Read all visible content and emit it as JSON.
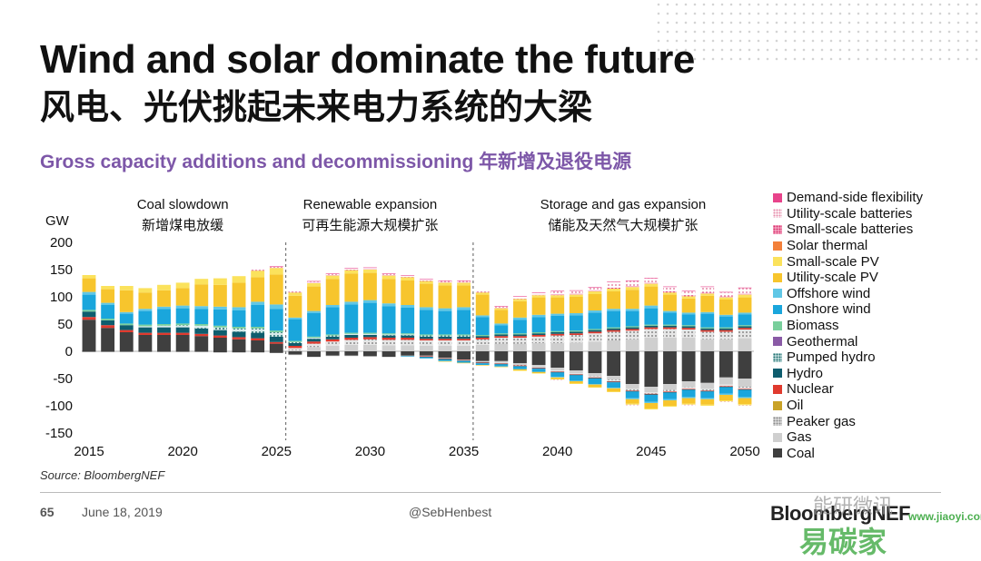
{
  "header": {
    "title_en": "Wind and solar dominate the future",
    "title_cn": "风电、光伏挑起未来电力系统的大梁",
    "subtitle": "Gross capacity additions and decommissioning 年新增及退役电源"
  },
  "footer": {
    "source": "Source: BloombergNEF",
    "page_number": "65",
    "date": "June 18, 2019",
    "handle": "@SebHenbest",
    "brand": "BloombergNEF",
    "watermark_cn": "能研微讯",
    "watermark_url": "www.jiaoyi.com",
    "watermark_logo": "易碳家"
  },
  "colors": {
    "Demand-side flexibility": "#e8438b",
    "Utility-scale batteries": "#f2b6c8",
    "Small-scale batteries": "#ee4f8c",
    "Solar thermal": "#f3803a",
    "Small-scale PV": "#fbe25c",
    "Utility-scale PV": "#f7c52d",
    "Offshore wind": "#60c7e6",
    "Onshore wind": "#1aa6dc",
    "Biomass": "#79cf9c",
    "Geothermal": "#8a5aa6",
    "Pumped hydro": "#1f6f6f",
    "Hydro": "#0e5d6e",
    "Nuclear": "#e03a2e",
    "Oil": "#c9a227",
    "Peaker gas": "#a8a8a8",
    "Gas": "#cfcfcf",
    "Coal": "#3f3f3f"
  },
  "chart_data": {
    "type": "bar",
    "stacked": true,
    "ylabel": "GW",
    "ylim": [
      -150,
      200
    ],
    "yticks": [
      200,
      150,
      100,
      50,
      0,
      -50,
      -100,
      -150
    ],
    "xticks": [
      2015,
      2020,
      2025,
      2030,
      2035,
      2040,
      2045,
      2050
    ],
    "categories": [
      2015,
      2016,
      2017,
      2018,
      2019,
      2020,
      2021,
      2022,
      2023,
      2024,
      2025,
      2026,
      2027,
      2028,
      2029,
      2030,
      2031,
      2032,
      2033,
      2034,
      2035,
      2036,
      2037,
      2038,
      2039,
      2040,
      2041,
      2042,
      2043,
      2044,
      2045,
      2046,
      2047,
      2048,
      2049,
      2050
    ],
    "phases": [
      {
        "title": "Coal slowdown",
        "title_cn": "新增煤电放缓",
        "x_center": 2020
      },
      {
        "title": "Renewable expansion",
        "title_cn": "可再生能源大规模扩张",
        "x_center": 2030
      },
      {
        "title": "Storage and gas expansion",
        "title_cn": "储能及天然气大规模扩张",
        "x_center": 2043.5
      }
    ],
    "dividers": [
      2025.5,
      2035.5
    ],
    "legend_order": [
      "Demand-side flexibility",
      "Utility-scale batteries",
      "Small-scale batteries",
      "Solar thermal",
      "Small-scale PV",
      "Utility-scale PV",
      "Offshore wind",
      "Onshore wind",
      "Biomass",
      "Geothermal",
      "Pumped hydro",
      "Hydro",
      "Nuclear",
      "Oil",
      "Peaker gas",
      "Gas",
      "Coal"
    ],
    "positive_series": [
      {
        "name": "Coal",
        "values": [
          58,
          43,
          35,
          30,
          30,
          30,
          28,
          25,
          22,
          20,
          14,
          0,
          0,
          0,
          0,
          0,
          0,
          0,
          0,
          0,
          0,
          0,
          0,
          0,
          0,
          0,
          0,
          0,
          0,
          0,
          0,
          0,
          0,
          0,
          0,
          0
        ]
      },
      {
        "name": "Gas",
        "values": [
          0,
          0,
          0,
          0,
          0,
          0,
          0,
          0,
          0,
          0,
          0,
          2,
          8,
          10,
          12,
          12,
          11,
          11,
          10,
          10,
          10,
          12,
          14,
          14,
          15,
          15,
          16,
          18,
          20,
          22,
          25,
          25,
          25,
          22,
          22,
          24
        ]
      },
      {
        "name": "Peaker gas",
        "values": [
          0,
          0,
          0,
          0,
          0,
          0,
          0,
          0,
          0,
          0,
          0,
          4,
          6,
          8,
          9,
          10,
          10,
          10,
          10,
          10,
          10,
          10,
          11,
          11,
          12,
          14,
          14,
          15,
          16,
          16,
          16,
          16,
          15,
          14,
          14,
          16
        ]
      },
      {
        "name": "Nuclear",
        "values": [
          5,
          5,
          4,
          4,
          4,
          4,
          4,
          4,
          4,
          4,
          3,
          4,
          4,
          4,
          4,
          4,
          4,
          4,
          3,
          3,
          3,
          3,
          3,
          3,
          3,
          3,
          3,
          3,
          3,
          3,
          3,
          3,
          3,
          3,
          3,
          3
        ]
      },
      {
        "name": "Hydro",
        "values": [
          10,
          9,
          9,
          10,
          10,
          10,
          10,
          10,
          10,
          10,
          10,
          5,
          5,
          5,
          5,
          4,
          4,
          4,
          4,
          4,
          4,
          3,
          3,
          3,
          3,
          3,
          3,
          3,
          3,
          3,
          3,
          3,
          3,
          3,
          3,
          3
        ]
      },
      {
        "name": "Pumped hydro",
        "values": [
          0,
          0,
          0,
          2,
          3,
          4,
          5,
          5,
          6,
          8,
          8,
          2,
          2,
          2,
          2,
          2,
          2,
          2,
          2,
          2,
          2,
          0,
          0,
          0,
          0,
          0,
          0,
          0,
          0,
          0,
          0,
          0,
          0,
          0,
          0,
          0
        ]
      },
      {
        "name": "Biomass",
        "values": [
          3,
          3,
          3,
          3,
          3,
          3,
          3,
          3,
          3,
          3,
          3,
          2,
          2,
          2,
          2,
          2,
          2,
          2,
          2,
          2,
          2,
          2,
          2,
          2,
          2,
          2,
          2,
          2,
          2,
          2,
          2,
          2,
          2,
          2,
          2,
          2
        ]
      },
      {
        "name": "Onshore wind",
        "values": [
          28,
          25,
          18,
          25,
          28,
          28,
          28,
          30,
          30,
          40,
          40,
          40,
          43,
          50,
          52,
          55,
          50,
          47,
          45,
          43,
          45,
          33,
          15,
          25,
          28,
          28,
          28,
          30,
          30,
          28,
          30,
          22,
          20,
          25,
          20,
          20
        ]
      },
      {
        "name": "Offshore wind",
        "values": [
          5,
          4,
          3,
          4,
          4,
          5,
          5,
          5,
          6,
          6,
          8,
          3,
          4,
          4,
          5,
          5,
          5,
          5,
          5,
          5,
          5,
          3,
          3,
          4,
          4,
          4,
          4,
          4,
          4,
          4,
          5,
          3,
          3,
          3,
          3,
          3
        ]
      },
      {
        "name": "Utility-scale PV",
        "values": [
          25,
          25,
          40,
          30,
          30,
          32,
          40,
          40,
          45,
          45,
          55,
          40,
          45,
          48,
          52,
          50,
          45,
          45,
          43,
          42,
          40,
          38,
          25,
          30,
          32,
          30,
          30,
          30,
          32,
          35,
          35,
          30,
          26,
          30,
          28,
          28
        ]
      },
      {
        "name": "Small-scale PV",
        "values": [
          6,
          6,
          8,
          8,
          10,
          10,
          10,
          12,
          12,
          12,
          12,
          6,
          6,
          6,
          6,
          6,
          6,
          6,
          5,
          5,
          5,
          4,
          3,
          4,
          4,
          4,
          4,
          5,
          5,
          5,
          5,
          4,
          4,
          4,
          4,
          5
        ]
      },
      {
        "name": "Solar thermal",
        "values": [
          0,
          0,
          0,
          0,
          0,
          0,
          0,
          0,
          0,
          0,
          0,
          0,
          0,
          0,
          0,
          0,
          0,
          0,
          0,
          0,
          0,
          0,
          0,
          0,
          0,
          0,
          0,
          0,
          0,
          0,
          0,
          0,
          0,
          0,
          0,
          0
        ]
      },
      {
        "name": "Small-scale batteries",
        "values": [
          0,
          0,
          0,
          0,
          0,
          0,
          0,
          0,
          0,
          1,
          1,
          1,
          1,
          1,
          1,
          1,
          1,
          1,
          1,
          1,
          1,
          1,
          1,
          1,
          1,
          2,
          2,
          2,
          2,
          2,
          2,
          2,
          2,
          2,
          2,
          2
        ]
      },
      {
        "name": "Utility-scale batteries",
        "values": [
          0,
          0,
          0,
          0,
          0,
          0,
          0,
          0,
          0,
          1,
          1,
          1,
          2,
          2,
          2,
          2,
          2,
          2,
          2,
          2,
          2,
          2,
          2,
          3,
          3,
          5,
          5,
          5,
          10,
          9,
          8,
          8,
          7,
          10,
          7,
          10
        ]
      },
      {
        "name": "Demand-side flexibility",
        "values": [
          0,
          0,
          0,
          0,
          0,
          0,
          0,
          0,
          0,
          0,
          1,
          0,
          1,
          1,
          1,
          1,
          1,
          1,
          1,
          1,
          1,
          0,
          1,
          1,
          1,
          1,
          1,
          1,
          1,
          1,
          1,
          1,
          1,
          1,
          1,
          1
        ]
      }
    ],
    "negative_series": [
      {
        "name": "Coal",
        "values": [
          -1,
          -1,
          -1,
          -1,
          -1,
          -1,
          -1,
          -2,
          -2,
          -2,
          -3,
          -6,
          -10,
          -8,
          -8,
          -9,
          -10,
          -8,
          -8,
          -12,
          -15,
          -18,
          -18,
          -22,
          -25,
          -30,
          -35,
          -40,
          -45,
          -60,
          -65,
          -60,
          -55,
          -58,
          -48,
          -50
        ]
      },
      {
        "name": "Gas",
        "values": [
          0,
          0,
          0,
          0,
          0,
          0,
          0,
          0,
          0,
          0,
          0,
          -1,
          -1,
          -1,
          -1,
          -1,
          -1,
          -1,
          -1,
          -1,
          -1,
          -2,
          -3,
          -3,
          -4,
          -5,
          -5,
          -6,
          -7,
          -9,
          -10,
          -11,
          -11,
          -11,
          -13,
          -15
        ]
      },
      {
        "name": "Peaker gas",
        "values": [
          0,
          0,
          0,
          0,
          0,
          0,
          0,
          0,
          0,
          0,
          0,
          0,
          0,
          0,
          0,
          0,
          0,
          0,
          0,
          0,
          0,
          0,
          -1,
          -1,
          -1,
          -2,
          -2,
          -2,
          -3,
          -3,
          -3,
          -3,
          -3,
          -3,
          -3,
          -4
        ]
      },
      {
        "name": "Nuclear",
        "values": [
          0,
          0,
          0,
          0,
          0,
          0,
          0,
          0,
          0,
          0,
          0,
          0,
          0,
          0,
          0,
          0,
          0,
          0,
          -1,
          -1,
          -1,
          -1,
          -1,
          -1,
          -1,
          -1,
          -1,
          -1,
          -1,
          -1,
          -1,
          -1,
          -1,
          -1,
          -1,
          -1
        ]
      },
      {
        "name": "Hydro",
        "values": [
          0,
          0,
          0,
          0,
          0,
          0,
          0,
          0,
          0,
          0,
          0,
          0,
          0,
          0,
          0,
          0,
          0,
          0,
          -1,
          -1,
          -1,
          -1,
          -1,
          -1,
          -1,
          -1,
          -1,
          -1,
          -1,
          -1,
          -1,
          -1,
          -1,
          -1,
          -1,
          -1
        ]
      },
      {
        "name": "Onshore wind",
        "values": [
          0,
          0,
          0,
          0,
          0,
          0,
          0,
          0,
          0,
          0,
          0,
          0,
          0,
          0,
          0,
          0,
          0,
          -1,
          -2,
          -3,
          -3,
          -3,
          -4,
          -5,
          -6,
          -8,
          -10,
          -10,
          -10,
          -12,
          -13,
          -12,
          -13,
          -12,
          -12,
          -13
        ]
      },
      {
        "name": "Offshore wind",
        "values": [
          0,
          0,
          0,
          0,
          0,
          0,
          0,
          0,
          0,
          0,
          0,
          0,
          0,
          0,
          0,
          0,
          0,
          0,
          0,
          0,
          0,
          0,
          0,
          0,
          0,
          -1,
          -1,
          -1,
          -1,
          -2,
          -2,
          -2,
          -2,
          -2,
          -2,
          -2
        ]
      },
      {
        "name": "Utility-scale PV",
        "values": [
          0,
          0,
          0,
          0,
          0,
          0,
          0,
          0,
          0,
          0,
          0,
          0,
          0,
          0,
          0,
          0,
          0,
          0,
          0,
          -1,
          -1,
          -1,
          -1,
          -2,
          -2,
          -3,
          -4,
          -5,
          -6,
          -8,
          -10,
          -10,
          -10,
          -10,
          -10,
          -11
        ]
      },
      {
        "name": "Small-scale PV",
        "values": [
          0,
          0,
          0,
          0,
          0,
          0,
          0,
          0,
          0,
          0,
          0,
          0,
          0,
          0,
          0,
          0,
          0,
          0,
          0,
          0,
          0,
          0,
          0,
          -1,
          -1,
          -1,
          -1,
          -1,
          -1,
          -2,
          -2,
          -2,
          -2,
          -2,
          -2,
          -2
        ]
      },
      {
        "name": "Utility-scale batteries",
        "values": [
          0,
          0,
          0,
          0,
          0,
          0,
          0,
          0,
          0,
          0,
          0,
          0,
          0,
          0,
          0,
          0,
          0,
          0,
          0,
          0,
          0,
          0,
          0,
          0,
          -1,
          -1,
          -1,
          -1,
          -1,
          -1,
          -1,
          -1,
          -1,
          -1,
          -1,
          -1
        ]
      }
    ]
  }
}
